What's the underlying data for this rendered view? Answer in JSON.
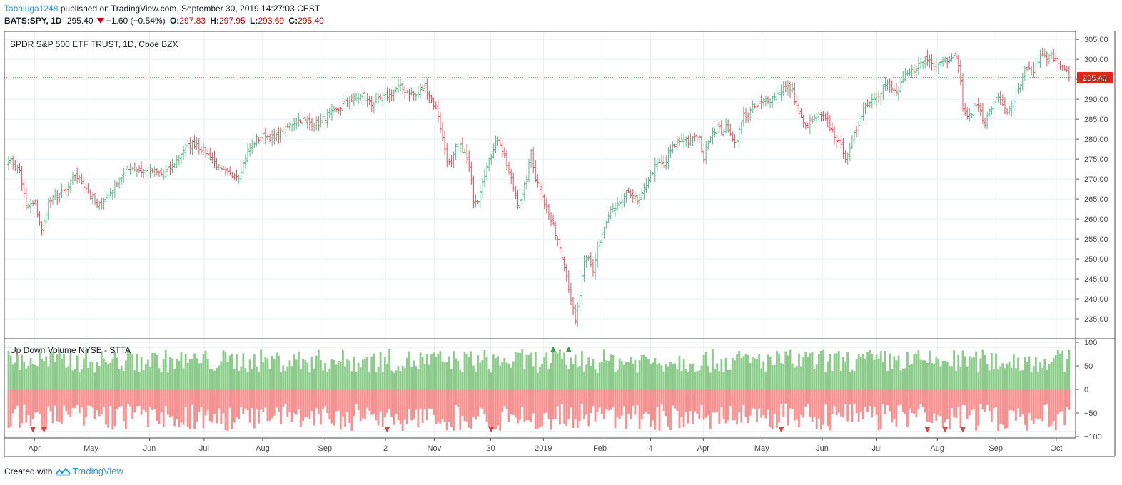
{
  "header": {
    "author": "Tabaluga1248",
    "published": "published on TradingView.com, September 30, 2019 14:27:03 CEST",
    "symbol": "BATS:SPY, 1D",
    "last": "295.40",
    "change": "−1.60 (−0.54%)",
    "open_label": "O:",
    "open": "297.83",
    "high_label": "H:",
    "high": "297.95",
    "low_label": "L:",
    "low": "293.69",
    "close_label": "C:",
    "close": "295.40"
  },
  "footer": {
    "created": "Created with",
    "brand": "TradingView"
  },
  "colors": {
    "up": "#53b987",
    "down": "#eb4d5c",
    "grid": "#e9eff3",
    "accent": "#2196f3",
    "price_line": "#e0281a"
  },
  "chart_data": [
    {
      "type": "ohlc",
      "title": "SPDR S&P 500 ETF TRUST, 1D, Cboe BZX",
      "yticks": [
        235,
        240,
        245,
        250,
        255,
        260,
        265,
        270,
        275,
        280,
        285,
        290,
        295,
        300,
        305
      ],
      "ytick_labels": [
        "235.00",
        "240.00",
        "245.00",
        "250.00",
        "255.00",
        "260.00",
        "265.00",
        "270.00",
        "275.00",
        "280.00",
        "285.00",
        "290.00",
        "295.00",
        "300.00",
        "305.00"
      ],
      "ylim": [
        230,
        307
      ],
      "last_price": 295.4,
      "last_price_label": "295.40",
      "x_labels": [
        "Apr",
        "May",
        "Jun",
        "Jul",
        "Aug",
        "Sep",
        "2",
        "Nov",
        "30",
        "2019",
        "Feb",
        "4",
        "Apr",
        "May",
        "Jun",
        "Jul",
        "Aug",
        "Sep",
        "Oct"
      ],
      "x_label_days": [
        14,
        43,
        73,
        101,
        131,
        163,
        194,
        219,
        248,
        275,
        304,
        330,
        357,
        387,
        418,
        446,
        477,
        507,
        538
      ],
      "anchors": [
        [
          0,
          275
        ],
        [
          5,
          272
        ],
        [
          8,
          263
        ],
        [
          12,
          264
        ],
        [
          15,
          257
        ],
        [
          18,
          264
        ],
        [
          22,
          266
        ],
        [
          26,
          267
        ],
        [
          30,
          271
        ],
        [
          35,
          268
        ],
        [
          40,
          263
        ],
        [
          45,
          266
        ],
        [
          50,
          270
        ],
        [
          55,
          273
        ],
        [
          60,
          272
        ],
        [
          65,
          272
        ],
        [
          70,
          271
        ],
        [
          75,
          274
        ],
        [
          80,
          278
        ],
        [
          85,
          279
        ],
        [
          88,
          277
        ],
        [
          92,
          275
        ],
        [
          96,
          272
        ],
        [
          100,
          271
        ],
        [
          104,
          271
        ],
        [
          108,
          277
        ],
        [
          112,
          280
        ],
        [
          116,
          281
        ],
        [
          120,
          280
        ],
        [
          124,
          282
        ],
        [
          128,
          284
        ],
        [
          132,
          285
        ],
        [
          136,
          284
        ],
        [
          140,
          284
        ],
        [
          144,
          286
        ],
        [
          148,
          287
        ],
        [
          152,
          289
        ],
        [
          156,
          290
        ],
        [
          160,
          291
        ],
        [
          164,
          289
        ],
        [
          168,
          290
        ],
        [
          172,
          291
        ],
        [
          176,
          293
        ],
        [
          180,
          292
        ],
        [
          184,
          291
        ],
        [
          188,
          293
        ],
        [
          191,
          290
        ],
        [
          194,
          286
        ],
        [
          196,
          280
        ],
        [
          198,
          275
        ],
        [
          200,
          273
        ],
        [
          202,
          278
        ],
        [
          205,
          278
        ],
        [
          208,
          273
        ],
        [
          210,
          265
        ],
        [
          212,
          265
        ],
        [
          214,
          270
        ],
        [
          216,
          273
        ],
        [
          218,
          276
        ],
        [
          220,
          280
        ],
        [
          222,
          279
        ],
        [
          224,
          275
        ],
        [
          226,
          272
        ],
        [
          228,
          268
        ],
        [
          230,
          264
        ],
        [
          232,
          266
        ],
        [
          234,
          270
        ],
        [
          236,
          277
        ],
        [
          238,
          270
        ],
        [
          240,
          268
        ],
        [
          242,
          264
        ],
        [
          244,
          261
        ],
        [
          246,
          258
        ],
        [
          248,
          255
        ],
        [
          250,
          251
        ],
        [
          252,
          246
        ],
        [
          254,
          240
        ],
        [
          256,
          234
        ],
        [
          258,
          241
        ],
        [
          260,
          249
        ],
        [
          262,
          250
        ],
        [
          264,
          247
        ],
        [
          266,
          253
        ],
        [
          268,
          256
        ],
        [
          270,
          259
        ],
        [
          272,
          262
        ],
        [
          274,
          262
        ],
        [
          276,
          264
        ],
        [
          278,
          265
        ],
        [
          280,
          267
        ],
        [
          282,
          266
        ],
        [
          284,
          264
        ],
        [
          286,
          266
        ],
        [
          288,
          269
        ],
        [
          290,
          271
        ],
        [
          292,
          273
        ],
        [
          294,
          274
        ],
        [
          296,
          273
        ],
        [
          298,
          276
        ],
        [
          300,
          278
        ],
        [
          302,
          279
        ],
        [
          304,
          280
        ],
        [
          306,
          280
        ],
        [
          308,
          279
        ],
        [
          310,
          281
        ],
        [
          312,
          280
        ],
        [
          314,
          275
        ],
        [
          316,
          280
        ],
        [
          318,
          282
        ],
        [
          320,
          283
        ],
        [
          322,
          282
        ],
        [
          324,
          283
        ],
        [
          326,
          282
        ],
        [
          328,
          279
        ],
        [
          330,
          282
        ],
        [
          332,
          286
        ],
        [
          334,
          286
        ],
        [
          336,
          288
        ],
        [
          338,
          288
        ],
        [
          340,
          289
        ],
        [
          342,
          290
        ],
        [
          344,
          290
        ],
        [
          346,
          291
        ],
        [
          348,
          292
        ],
        [
          350,
          293
        ],
        [
          352,
          293
        ],
        [
          354,
          292
        ],
        [
          355,
          290
        ],
        [
          356,
          288
        ],
        [
          358,
          285
        ],
        [
          360,
          283
        ],
        [
          362,
          284
        ],
        [
          364,
          285
        ],
        [
          366,
          286
        ],
        [
          368,
          285
        ],
        [
          370,
          284
        ],
        [
          372,
          282
        ],
        [
          374,
          280
        ],
        [
          376,
          278
        ],
        [
          378,
          276
        ],
        [
          380,
          277
        ],
        [
          382,
          281
        ],
        [
          384,
          284
        ],
        [
          386,
          288
        ],
        [
          388,
          289
        ],
        [
          390,
          290
        ],
        [
          392,
          291
        ],
        [
          394,
          292
        ],
        [
          396,
          294
        ],
        [
          398,
          293
        ],
        [
          400,
          292
        ],
        [
          402,
          292
        ],
        [
          404,
          295
        ],
        [
          406,
          296
        ],
        [
          408,
          297
        ],
        [
          410,
          298
        ],
        [
          412,
          299
        ],
        [
          414,
          300
        ],
        [
          416,
          300
        ],
        [
          418,
          299
        ],
        [
          420,
          299
        ],
        [
          422,
          300
        ],
        [
          424,
          300
        ],
        [
          426,
          301
        ],
        [
          428,
          300
        ],
        [
          429,
          299
        ],
        [
          430,
          294
        ],
        [
          431,
          288
        ],
        [
          433,
          285
        ],
        [
          435,
          287
        ],
        [
          437,
          289
        ],
        [
          439,
          287
        ],
        [
          441,
          284
        ],
        [
          443,
          287
        ],
        [
          445,
          289
        ],
        [
          447,
          291
        ],
        [
          449,
          289
        ],
        [
          451,
          286
        ],
        [
          453,
          288
        ],
        [
          455,
          291
        ],
        [
          457,
          293
        ],
        [
          459,
          297
        ],
        [
          461,
          298
        ],
        [
          463,
          297
        ],
        [
          465,
          300
        ],
        [
          467,
          301
        ],
        [
          469,
          300
        ],
        [
          471,
          301
        ],
        [
          473,
          300
        ],
        [
          475,
          299
        ],
        [
          477,
          297
        ],
        [
          478,
          297
        ],
        [
          479,
          295.4
        ]
      ]
    },
    {
      "type": "bar",
      "title": "Up Down Volume NYSE - STTA",
      "yticks": [
        100,
        50,
        0,
        -50,
        -100
      ],
      "ytick_labels": [
        "100",
        "50",
        "0",
        "−50",
        "−100"
      ],
      "ylim": [
        -103,
        103
      ],
      "ref_lines": [
        90,
        -90
      ],
      "up_markers_day": [
        246,
        253
      ],
      "down_markers_day": [
        11,
        16,
        171,
        218,
        349,
        415,
        423,
        431
      ],
      "series": [
        {
          "values": "up-volume percent per day",
          "color": "#8bcc8a"
        },
        {
          "values": "down-volume percent per day",
          "color": "#fa8f8f"
        }
      ]
    }
  ]
}
